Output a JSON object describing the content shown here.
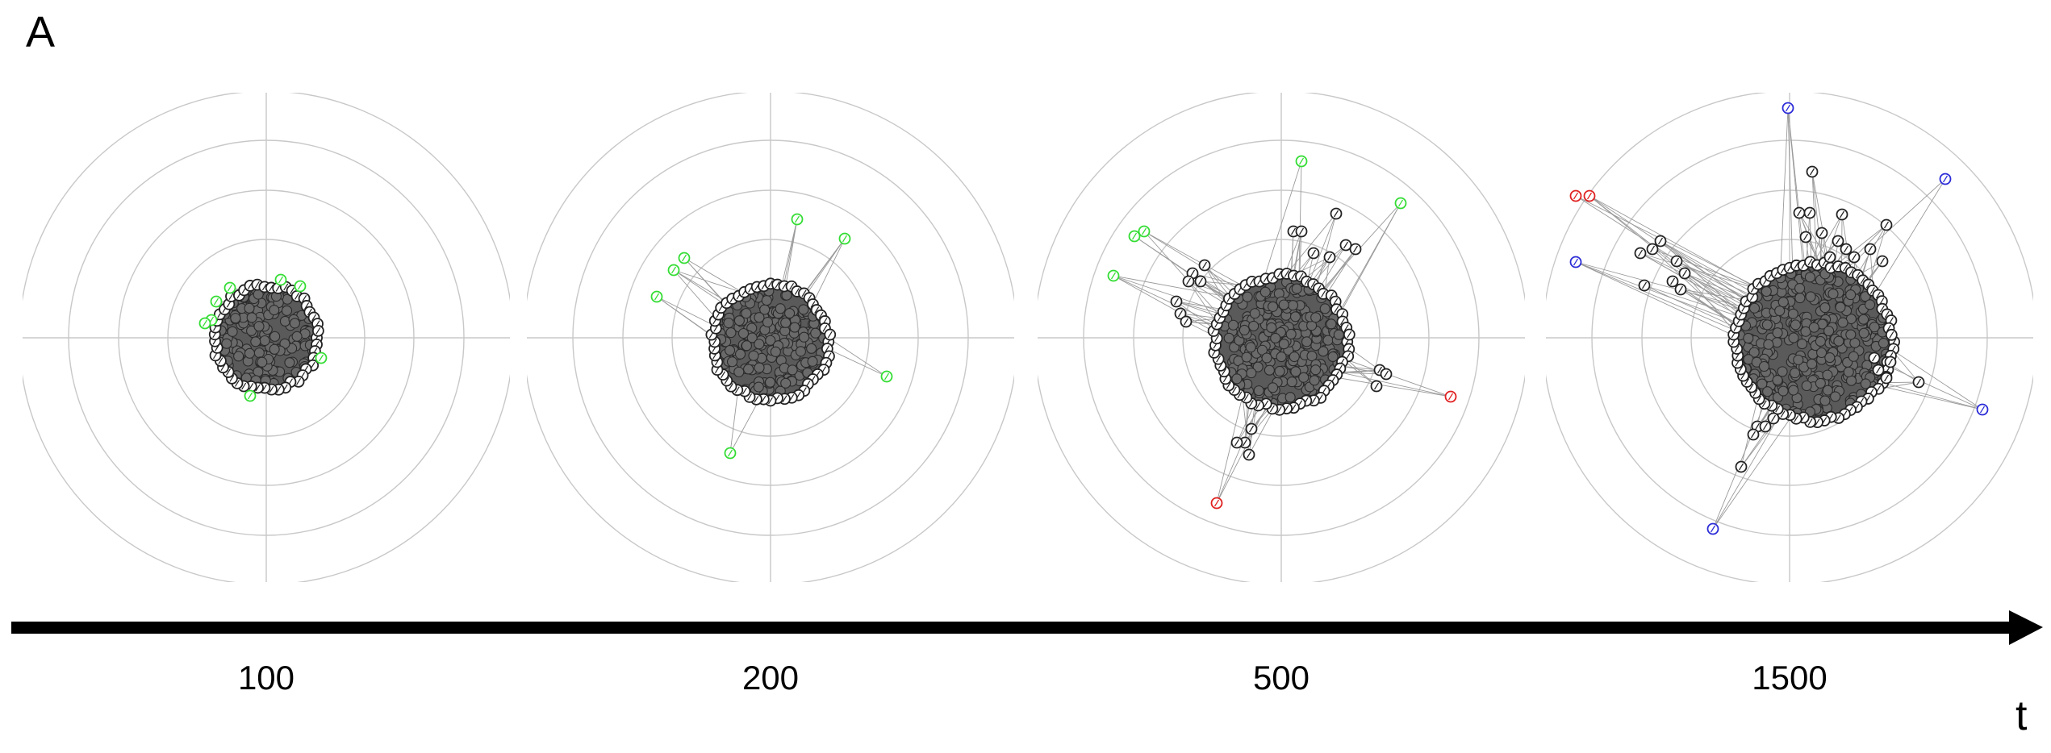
{
  "figure": {
    "panel_letter": "A",
    "axis_label": "t"
  },
  "timesteps": [
    {
      "t_label": "100"
    },
    {
      "t_label": "200"
    },
    {
      "t_label": "500"
    },
    {
      "t_label": "1500"
    }
  ],
  "colors": {
    "grid": "#c8c8c8",
    "node_default": "#222222",
    "node_green": "#33dd33",
    "node_red": "#e02020",
    "node_blue": "#2a2ad8",
    "edge": "#9a9a9a",
    "arrow": "#000000"
  },
  "legend_colors_meaning": "node outline colors as shown: black, green, red, blue"
}
